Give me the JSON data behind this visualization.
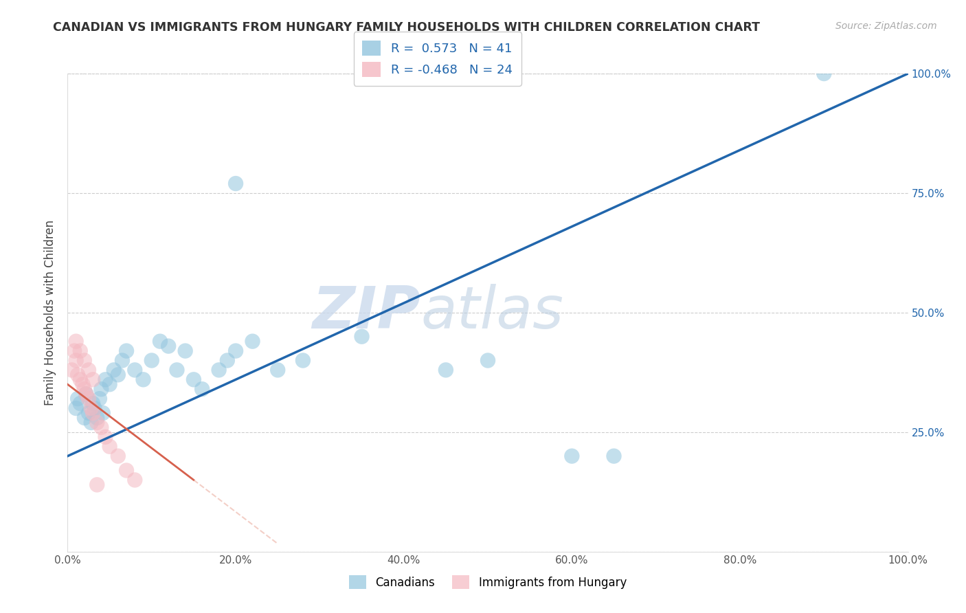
{
  "title": "CANADIAN VS IMMIGRANTS FROM HUNGARY FAMILY HOUSEHOLDS WITH CHILDREN CORRELATION CHART",
  "source": "Source: ZipAtlas.com",
  "ylabel": "Family Households with Children",
  "canadian_R": 0.573,
  "canadian_N": 41,
  "hungary_R": -0.468,
  "hungary_N": 24,
  "canadian_color": "#92c5de",
  "hungary_color": "#f4b8c1",
  "trend_canadian_color": "#2166ac",
  "trend_hungary_color": "#d6604d",
  "trend_hungary_dash_color": "#e8a090",
  "watermark_color": "#ddeeff",
  "xlim": [
    0,
    100
  ],
  "ylim": [
    0,
    100
  ],
  "xtick_vals": [
    0,
    20,
    40,
    60,
    80,
    100
  ],
  "xtick_labels": [
    "0.0%",
    "20.0%",
    "40.0%",
    "60.0%",
    "80.0%",
    "100.0%"
  ],
  "ytick_vals": [
    0,
    25,
    50,
    75,
    100
  ],
  "ytick_labels": [
    "",
    "25.0%",
    "50.0%",
    "75.0%",
    "100.0%"
  ],
  "canadian_x": [
    1.0,
    1.2,
    1.5,
    2.0,
    2.2,
    2.5,
    2.8,
    3.0,
    3.2,
    3.5,
    3.8,
    4.0,
    4.2,
    4.5,
    5.0,
    5.5,
    6.0,
    6.5,
    7.0,
    8.0,
    9.0,
    10.0,
    11.0,
    12.0,
    13.0,
    14.0,
    15.0,
    16.0,
    18.0,
    19.0,
    20.0,
    22.0,
    25.0,
    28.0,
    35.0,
    45.0,
    50.0,
    60.0,
    20.0,
    65.0,
    90.0
  ],
  "canadian_y": [
    30.0,
    32.0,
    31.0,
    28.0,
    33.0,
    29.0,
    27.0,
    31.0,
    30.0,
    28.0,
    32.0,
    34.0,
    29.0,
    36.0,
    35.0,
    38.0,
    37.0,
    40.0,
    42.0,
    38.0,
    36.0,
    40.0,
    44.0,
    43.0,
    38.0,
    42.0,
    36.0,
    34.0,
    38.0,
    40.0,
    42.0,
    44.0,
    38.0,
    40.0,
    45.0,
    38.0,
    40.0,
    20.0,
    77.0,
    20.0,
    100.0
  ],
  "hungary_x": [
    0.5,
    0.8,
    1.0,
    1.2,
    1.5,
    1.8,
    2.0,
    2.2,
    2.5,
    2.8,
    3.0,
    3.5,
    4.0,
    4.5,
    5.0,
    6.0,
    7.0,
    8.0,
    1.0,
    1.5,
    2.0,
    2.5,
    3.0,
    3.5
  ],
  "hungary_y": [
    38.0,
    42.0,
    40.0,
    37.0,
    36.0,
    35.0,
    34.0,
    33.0,
    32.0,
    30.0,
    29.0,
    27.0,
    26.0,
    24.0,
    22.0,
    20.0,
    17.0,
    15.0,
    44.0,
    42.0,
    40.0,
    38.0,
    36.0,
    14.0
  ],
  "canada_trend_x0": 0,
  "canada_trend_y0": 20.0,
  "canada_trend_x1": 100,
  "canada_trend_y1": 100.0,
  "hungary_trend_x0": 0,
  "hungary_trend_y0": 35.0,
  "hungary_trend_x1": 15.0,
  "hungary_trend_y1": 15.0
}
